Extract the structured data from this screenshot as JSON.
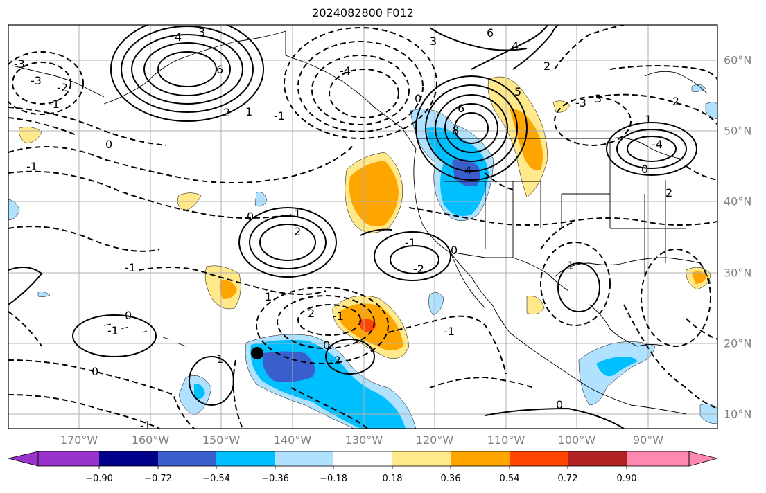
{
  "title": "2024082800 F012",
  "longitude_labels": [
    "170°W",
    "160°W",
    "150°W",
    "140°W",
    "130°W",
    "120°W",
    "110°W",
    "100°W",
    "90°W"
  ],
  "latitude_labels": [
    "60°N",
    "50°N",
    "40°N",
    "30°N",
    "20°N",
    "10°N"
  ],
  "colorbar": {
    "tick_labels": [
      "−0.90",
      "−0.72",
      "−0.54",
      "−0.36",
      "−0.18",
      "0.18",
      "0.36",
      "0.54",
      "0.72",
      "0.90"
    ],
    "colors": [
      "#9933cc",
      "#00008b",
      "#3a5fcd",
      "#00bfff",
      "#b0e2ff",
      "#ffffff",
      "#ffe98a",
      "#ffa500",
      "#ff4500",
      "#b22222",
      "#ff88b0"
    ]
  },
  "contour_labels": [
    "4",
    "3",
    "6",
    "1",
    "2",
    "3",
    "4",
    "6",
    "0",
    "5",
    "8",
    "6",
    "4",
    "3",
    "2",
    "1",
    "0",
    "-1",
    "-2",
    "-3",
    "-4",
    "-1",
    "-2",
    "-3",
    "0",
    "-1",
    "0",
    "1",
    "2",
    "-1",
    "-2",
    "0",
    "-1",
    "1",
    "2",
    "-1",
    "0",
    "-2",
    "-1",
    "0",
    "-1",
    "1",
    "0",
    "-1",
    "1",
    "0",
    "-3",
    "2",
    "-4"
  ],
  "marker": "black-dot"
}
